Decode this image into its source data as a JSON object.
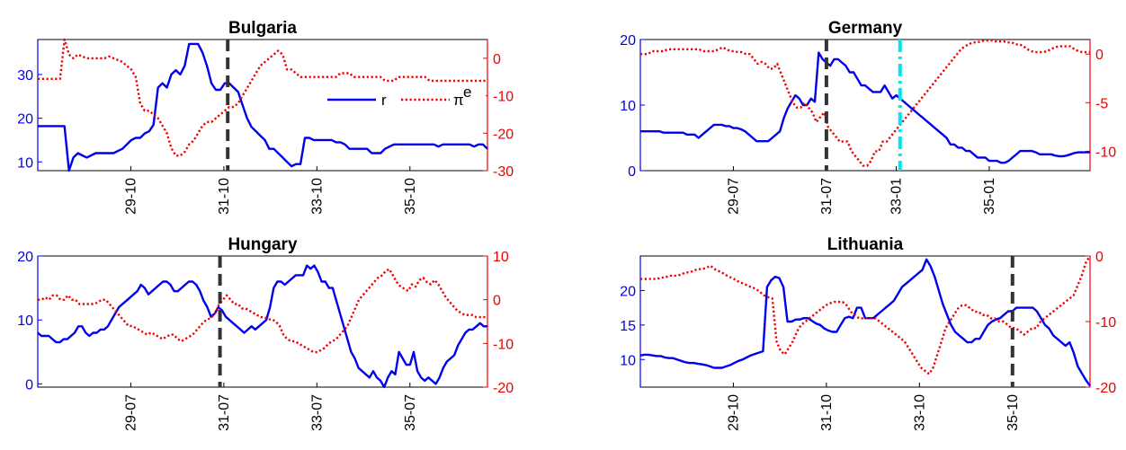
{
  "colors": {
    "r": "#0000ee",
    "pi": "#ee0000",
    "vline": "#333333",
    "vline2": "#00e5ee",
    "axis": "#000000"
  },
  "legend": {
    "r": "r",
    "pi_base": "π",
    "pi_sup": "e"
  },
  "chart_data": [
    {
      "type": "line",
      "title": "Bulgaria",
      "x_ticks": [
        "29-10",
        "31-10",
        "33-10",
        "35-10"
      ],
      "x_tick_pos": [
        24,
        48,
        72,
        96
      ],
      "x_range": [
        0,
        116
      ],
      "ylim_left": [
        8,
        38
      ],
      "y_ticks_left": [
        10,
        20,
        30
      ],
      "ylim_right": [
        -30,
        5
      ],
      "y_ticks_right": [
        -30,
        -20,
        -10,
        0
      ],
      "vlines": [
        {
          "x": 49,
          "style": "dash"
        }
      ],
      "series": [
        {
          "name": "r",
          "axis": "left",
          "style": "solid",
          "values": [
            18.2,
            18.2,
            18.2,
            18.2,
            18.2,
            18.2,
            18.2,
            8,
            11,
            12,
            11.5,
            11,
            11.5,
            12,
            12,
            12,
            12,
            12,
            12.5,
            13,
            14,
            15,
            15.5,
            15.5,
            16.5,
            17,
            18.5,
            27,
            28,
            27,
            30,
            31,
            30,
            32,
            37,
            37,
            37,
            35,
            32,
            28,
            26.5,
            26.5,
            28,
            28,
            27,
            26,
            23,
            20,
            18,
            17,
            16,
            15,
            13,
            13,
            12,
            11,
            10,
            9,
            9.5,
            9.5,
            15.5,
            15.5,
            15,
            15,
            15,
            15,
            15,
            14.5,
            14.5,
            14,
            13,
            13,
            13,
            13,
            13,
            12,
            12,
            12,
            13,
            13.5,
            14,
            14,
            14,
            14,
            14,
            14,
            14,
            14,
            14,
            14,
            13.5,
            14,
            14,
            14,
            14,
            14,
            14,
            14,
            13.5,
            14,
            14,
            13
          ]
        },
        {
          "name": "π^e",
          "axis": "right",
          "style": "dot",
          "values": [
            -5.5,
            -5.5,
            -5.5,
            -5.5,
            -5.5,
            -5.5,
            5,
            1,
            0,
            1,
            0.5,
            0,
            0,
            0,
            0,
            0,
            0.5,
            0,
            -0.5,
            -1,
            -2,
            -3,
            -5,
            -12,
            -14,
            -14,
            -15,
            -16,
            -18,
            -20,
            -24,
            -26,
            -26,
            -25,
            -23,
            -22,
            -20,
            -18,
            -17,
            -17,
            -16,
            -15,
            -14,
            -13,
            -13,
            -12,
            -10,
            -8,
            -6,
            -4,
            -2,
            -1,
            0,
            1,
            2,
            1,
            -3,
            -3,
            -4,
            -5,
            -5,
            -5,
            -5,
            -5,
            -5,
            -5,
            -5,
            -5,
            -4,
            -4,
            -4,
            -5,
            -5,
            -5,
            -5,
            -5,
            -5,
            -5,
            -6,
            -6,
            -6,
            -5,
            -5,
            -5,
            -5,
            -5,
            -5,
            -5,
            -6,
            -6,
            -6,
            -6,
            -6,
            -6,
            -6,
            -6,
            -6,
            -6,
            -6,
            -6,
            -6,
            -6
          ]
        }
      ]
    },
    {
      "type": "line",
      "title": "Germany",
      "x_ticks": [
        "29-07",
        "31-07",
        "33-01",
        "35-01"
      ],
      "x_tick_pos": [
        24,
        48,
        66,
        90
      ],
      "x_range": [
        0,
        116
      ],
      "ylim_left": [
        0,
        20
      ],
      "y_ticks_left": [
        0,
        10,
        20
      ],
      "ylim_right": [
        -12,
        1.5
      ],
      "y_ticks_right": [
        -10,
        -5,
        0
      ],
      "vlines": [
        {
          "x": 48,
          "style": "dash"
        },
        {
          "x": 67,
          "style": "dashdot"
        }
      ],
      "series": [
        {
          "name": "r",
          "axis": "left",
          "style": "solid",
          "values": [
            6,
            6,
            6,
            6,
            6,
            6,
            5.8,
            5.8,
            5.8,
            5.8,
            5.8,
            5.8,
            5.5,
            5.5,
            5.5,
            5,
            5.5,
            6,
            6.5,
            7,
            7,
            7,
            6.8,
            6.8,
            6.5,
            6.5,
            6.3,
            6,
            5.5,
            5,
            4.5,
            4.5,
            4.5,
            4.5,
            5,
            5.5,
            6,
            8,
            9.5,
            10.5,
            11.5,
            11,
            10,
            10,
            11,
            10.5,
            18,
            17,
            16.5,
            16,
            17,
            17,
            16.5,
            16,
            15,
            15,
            14,
            13,
            13,
            12.5,
            12,
            12,
            12,
            13,
            12,
            11,
            11.5,
            11,
            10.5,
            10,
            9.5,
            9,
            8.5,
            8,
            7.5,
            7,
            6.5,
            6,
            5.5,
            5,
            4,
            4,
            3.5,
            3.5,
            3,
            3,
            2.5,
            2,
            2,
            2,
            1.5,
            1.5,
            1.5,
            1.2,
            1.2,
            1.5,
            2,
            2.5,
            3,
            3,
            3,
            3,
            2.8,
            2.5,
            2.5,
            2.5,
            2.5,
            2.3,
            2.2,
            2.2,
            2.3,
            2.5,
            2.7,
            2.8,
            2.8,
            2.8,
            2.8
          ]
        },
        {
          "name": "π^e",
          "axis": "right",
          "style": "dot",
          "values": [
            0,
            0,
            0,
            0.3,
            0.3,
            0.3,
            0.3,
            0.5,
            0.5,
            0.5,
            0.5,
            0.5,
            0.5,
            0.5,
            0.5,
            0.5,
            0.3,
            0.3,
            0.3,
            0.3,
            0.5,
            0.7,
            0.5,
            0.3,
            0.3,
            0.2,
            0.2,
            0,
            0,
            -0.5,
            -1,
            -0.8,
            -1,
            -1.5,
            -1.5,
            -1,
            -2,
            -3,
            -4,
            -5,
            -5.5,
            -5.5,
            -5,
            -5.5,
            -6,
            -7,
            -6.5,
            -6,
            -7.5,
            -8,
            -8.5,
            -9,
            -9,
            -9,
            -10,
            -10.5,
            -11,
            -11.5,
            -11.5,
            -11,
            -10,
            -10,
            -9,
            -9,
            -8.5,
            -8,
            -7.5,
            -7,
            -6.5,
            -6,
            -5.5,
            -5,
            -4.5,
            -4,
            -3.5,
            -3,
            -2.5,
            -2,
            -1.5,
            -1,
            -0.5,
            0,
            0.5,
            0.8,
            1,
            1.2,
            1.2,
            1.3,
            1.4,
            1.4,
            1.4,
            1.3,
            1.3,
            1.3,
            1.2,
            1.2,
            1,
            1,
            0.8,
            0.5,
            0.3,
            0.2,
            0.2,
            0.2,
            0.3,
            0.5,
            0.7,
            0.8,
            0.8,
            0.8,
            0.8,
            0.5,
            0.3,
            0.2,
            0.2,
            0.2
          ]
        }
      ]
    },
    {
      "type": "line",
      "title": "Hungary",
      "x_ticks": [
        "29-07",
        "31-07",
        "33-07",
        "35-07"
      ],
      "x_tick_pos": [
        24,
        48,
        72,
        96
      ],
      "x_range": [
        0,
        116
      ],
      "ylim_left": [
        -0.5,
        20
      ],
      "y_ticks_left": [
        0,
        10,
        20
      ],
      "ylim_right": [
        -20,
        10
      ],
      "y_ticks_right": [
        -20,
        -10,
        0,
        10
      ],
      "vlines": [
        {
          "x": 47,
          "style": "dash"
        }
      ],
      "series": [
        {
          "name": "r",
          "axis": "left",
          "style": "solid",
          "values": [
            8,
            7.5,
            7.5,
            7.5,
            7,
            6.5,
            6.5,
            7,
            7,
            7.5,
            8,
            9,
            9,
            8,
            7.5,
            8,
            8,
            8.5,
            8.5,
            9,
            10,
            11,
            12,
            12.5,
            13,
            13.5,
            14,
            14.5,
            15.5,
            15,
            14,
            14.5,
            15,
            15.5,
            16,
            16,
            15.5,
            14.5,
            14.5,
            15,
            15.5,
            16,
            16,
            15.5,
            14.5,
            13,
            12,
            10.5,
            11,
            12,
            11.5,
            10.5,
            10,
            9.5,
            9,
            8.5,
            8,
            8.5,
            9,
            8.5,
            9,
            9.5,
            10,
            12,
            15,
            16,
            16,
            15.5,
            16,
            16.5,
            17,
            17,
            17,
            18.5,
            18,
            18.5,
            17.5,
            16,
            16,
            15,
            15,
            13,
            11,
            9,
            7,
            5,
            4,
            2.5,
            2,
            1.5,
            1,
            2,
            1,
            0.5,
            -0.5,
            1,
            2,
            1.5,
            5,
            4,
            3,
            3,
            5,
            2,
            1,
            0.5,
            1,
            0.5,
            0,
            1,
            2.5,
            3.5,
            4,
            4.5,
            6,
            7,
            8,
            8.5,
            8.5,
            9,
            9.5,
            9,
            9
          ]
        },
        {
          "name": "π^e",
          "axis": "right",
          "style": "dot",
          "values": [
            0,
            0,
            0.5,
            0,
            1,
            1,
            0,
            0,
            1,
            0,
            0,
            -1,
            -1,
            -1,
            -1,
            -1,
            -0.5,
            0,
            0,
            -1,
            -2,
            -3,
            -4,
            -5,
            -6,
            -6,
            -6.5,
            -7,
            -7.5,
            -8,
            -7.5,
            -8,
            -8.5,
            -9,
            -8.5,
            -8,
            -8,
            -9,
            -9.5,
            -9,
            -8.5,
            -8,
            -7,
            -6,
            -5,
            -4.5,
            -4,
            -3,
            -1,
            0,
            1,
            0,
            -1,
            -1,
            -2,
            -2,
            -2.5,
            -3,
            -3.5,
            -4,
            -4,
            -4.5,
            -4.5,
            -5,
            -6,
            -8,
            -9,
            -9.5,
            -9.5,
            -10,
            -10.5,
            -11,
            -11.5,
            -12,
            -12,
            -11.5,
            -11,
            -10,
            -9.5,
            -9,
            -8,
            -7,
            -6,
            -4,
            -2,
            0,
            1,
            2,
            3,
            4,
            5,
            5.5,
            6.5,
            7,
            5.5,
            4,
            3,
            2.5,
            2,
            3.5,
            3,
            4.5,
            5,
            4,
            3.5,
            4.5,
            3.5,
            2,
            0.5,
            -0.5,
            -1.5,
            -2.5,
            -3,
            -3.5,
            -3.5,
            -3.5,
            -4,
            -4,
            -4,
            -4
          ]
        }
      ]
    },
    {
      "type": "line",
      "title": "Lithuania",
      "x_ticks": [
        "29-10",
        "31-10",
        "33-10",
        "35-10"
      ],
      "x_tick_pos": [
        24,
        48,
        72,
        96
      ],
      "x_range": [
        0,
        116
      ],
      "ylim_left": [
        6,
        25
      ],
      "y_ticks_left": [
        10,
        15,
        20
      ],
      "ylim_right": [
        -20,
        0
      ],
      "y_ticks_right": [
        -20,
        -10,
        0
      ],
      "vlines": [
        {
          "x": 96,
          "style": "dash"
        }
      ],
      "series": [
        {
          "name": "r",
          "axis": "left",
          "style": "solid",
          "values": [
            10.6,
            10.7,
            10.7,
            10.6,
            10.5,
            10.5,
            10.3,
            10.2,
            10.2,
            10,
            9.8,
            9.6,
            9.5,
            9.5,
            9.4,
            9.3,
            9.2,
            9,
            8.8,
            8.8,
            8.8,
            9,
            9.2,
            9.5,
            9.8,
            10,
            10.3,
            10.6,
            10.8,
            11,
            11.2,
            20.5,
            21.5,
            22,
            21.8,
            20.5,
            15.5,
            15.5,
            15.8,
            15.8,
            16,
            16,
            15.6,
            15.2,
            15,
            14.5,
            14.2,
            14,
            14,
            15,
            16,
            16.2,
            16,
            17.5,
            17.5,
            16,
            16,
            16,
            16.5,
            17,
            17.5,
            18,
            18.5,
            19.5,
            20.5,
            21,
            21.5,
            22,
            22.5,
            23,
            24.5,
            23.5,
            22,
            20,
            18,
            16.5,
            15,
            14,
            13.5,
            13,
            12.5,
            12.5,
            13,
            13,
            14,
            15,
            15.5,
            15.8,
            16,
            16.5,
            17,
            17,
            17.5,
            17.5,
            17.5,
            17.5,
            17.5,
            17,
            16,
            15,
            14.5,
            13.5,
            13,
            12.5,
            12,
            12.5,
            11,
            9,
            8,
            7,
            6.2
          ]
        },
        {
          "name": "π^e",
          "axis": "right",
          "style": "dot",
          "values": [
            -3.5,
            -3.5,
            -3.5,
            -3.5,
            -3.5,
            -3.3,
            -3.3,
            -3,
            -3,
            -3,
            -2.8,
            -2.5,
            -2.5,
            -2.2,
            -2,
            -2,
            -1.8,
            -1.5,
            -2,
            -2.3,
            -2.6,
            -3,
            -3.3,
            -3.6,
            -4,
            -4.2,
            -4.5,
            -4.8,
            -5,
            -5.5,
            -6,
            -6.3,
            -6.5,
            -13,
            -14.5,
            -15,
            -14,
            -13,
            -11.5,
            -10.5,
            -10,
            -9.5,
            -9,
            -8.5,
            -8,
            -7.5,
            -7.2,
            -7,
            -7,
            -7,
            -7.5,
            -8.5,
            -9,
            -9.5,
            -9.5,
            -9.5,
            -9.5,
            -9.5,
            -10,
            -10.5,
            -11,
            -11.5,
            -12,
            -12.5,
            -13,
            -14,
            -15,
            -16,
            -17,
            -17.5,
            -18,
            -17,
            -15,
            -13,
            -11,
            -10,
            -9,
            -8,
            -7.5,
            -7.5,
            -8,
            -8.5,
            -8.5,
            -9,
            -9,
            -9.5,
            -9.5,
            -10,
            -10,
            -10.5,
            -11,
            -11,
            -11.5,
            -12,
            -11.5,
            -11,
            -11,
            -10,
            -9.5,
            -9,
            -8.5,
            -8,
            -7.5,
            -7,
            -6.5,
            -6,
            -4.5,
            -3,
            -1,
            0
          ]
        }
      ]
    }
  ]
}
